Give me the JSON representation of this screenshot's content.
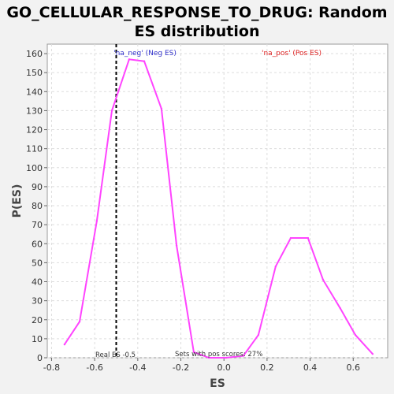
{
  "chart_data": {
    "type": "line",
    "title_line1": "GO_CELLULAR_RESPONSE_TO_DRUG: Random",
    "title_line2": "ES distribution",
    "xlabel": "ES",
    "ylabel": "P(ES)",
    "xlim": [
      -0.82,
      0.76
    ],
    "ylim": [
      0,
      165
    ],
    "xticks": [
      -0.8,
      -0.6,
      -0.4,
      -0.2,
      0.0,
      0.2,
      0.4,
      0.6
    ],
    "xtick_labels": [
      "-0.8",
      "-0.6",
      "-0.4",
      "-0.2",
      "0.0",
      "0.2",
      "0.4",
      "0.6"
    ],
    "yticks": [
      0,
      10,
      20,
      30,
      40,
      50,
      60,
      70,
      80,
      90,
      100,
      110,
      120,
      130,
      140,
      150,
      160
    ],
    "grid": true,
    "series": [
      {
        "name": "Random ES distribution",
        "color": "#ff44ff",
        "x": [
          -0.74,
          -0.67,
          -0.59,
          -0.52,
          -0.44,
          -0.37,
          -0.29,
          -0.22,
          -0.14,
          -0.07,
          0.01,
          0.09,
          0.16,
          0.24,
          0.31,
          0.39,
          0.46,
          0.54,
          0.61,
          0.69
        ],
        "y": [
          7,
          19,
          72,
          130,
          157,
          156,
          131,
          59,
          3,
          0,
          0,
          1,
          12,
          48,
          63,
          63,
          41,
          26,
          12,
          2
        ]
      }
    ],
    "real_es": -0.5,
    "annotations": {
      "neg_label": "'na_neg' (Neg ES)",
      "neg_color": "#3333cc",
      "pos_label": "'na_pos' (Pos ES)",
      "pos_color": "#dd2222",
      "real_es_label": "Real ES -0.5",
      "pos_scores_label": "Sets with pos scores: 27%"
    }
  }
}
